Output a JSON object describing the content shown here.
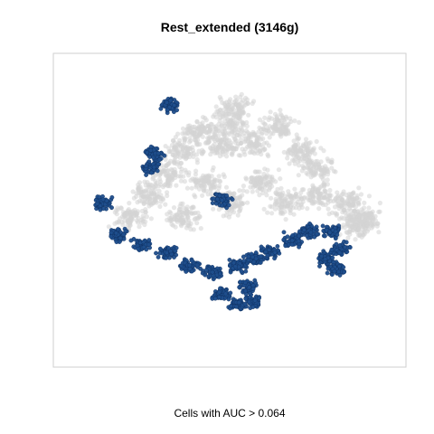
{
  "chart_data": {
    "type": "scatter",
    "title": "Rest_extended (3146g)",
    "caption": "Cells with AUC > 0.064",
    "xlabel": "",
    "ylabel": "",
    "axes_visible": false,
    "grid": false,
    "legend": "none",
    "series": [
      {
        "role": "all-cells",
        "color": "#d3d3d3",
        "alpha": 0.55,
        "region_centers": [
          [
            0.02,
            0.72
          ],
          [
            0.0,
            0.6
          ],
          [
            -0.2,
            0.55
          ],
          [
            -0.3,
            0.42
          ],
          [
            -0.05,
            0.45
          ],
          [
            0.15,
            0.48
          ],
          [
            0.3,
            0.6
          ],
          [
            0.45,
            0.42
          ],
          [
            0.55,
            0.3
          ],
          [
            -0.4,
            0.25
          ],
          [
            -0.5,
            0.1
          ],
          [
            -0.15,
            0.2
          ],
          [
            0.2,
            0.2
          ],
          [
            0.0,
            0.05
          ],
          [
            -0.62,
            -0.05
          ],
          [
            -0.3,
            -0.05
          ],
          [
            0.35,
            0.05
          ],
          [
            0.55,
            0.1
          ],
          [
            0.75,
            0.05
          ],
          [
            0.85,
            -0.05
          ],
          [
            0.8,
            -0.12
          ]
        ]
      },
      {
        "role": "cells-auc-above-threshold",
        "color": "#1f4e8c",
        "alpha": 0.95,
        "region_centers": [
          [
            -0.7,
            -0.18
          ],
          [
            -0.55,
            -0.25
          ],
          [
            -0.4,
            -0.3
          ],
          [
            -0.25,
            -0.4
          ],
          [
            -0.1,
            -0.45
          ],
          [
            0.05,
            -0.4
          ],
          [
            0.15,
            -0.35
          ],
          [
            0.25,
            -0.3
          ],
          [
            0.4,
            -0.22
          ],
          [
            0.6,
            -0.35
          ],
          [
            0.7,
            -0.28
          ],
          [
            0.5,
            -0.15
          ],
          [
            0.65,
            -0.15
          ],
          [
            -0.05,
            -0.6
          ],
          [
            0.05,
            -0.68
          ],
          [
            0.15,
            -0.65
          ],
          [
            0.12,
            -0.55
          ],
          [
            -0.5,
            0.3
          ],
          [
            -0.48,
            0.4
          ],
          [
            -0.8,
            0.05
          ],
          [
            -0.38,
            0.75
          ],
          [
            -0.05,
            0.07
          ],
          [
            0.68,
            -0.42
          ]
        ]
      }
    ]
  }
}
